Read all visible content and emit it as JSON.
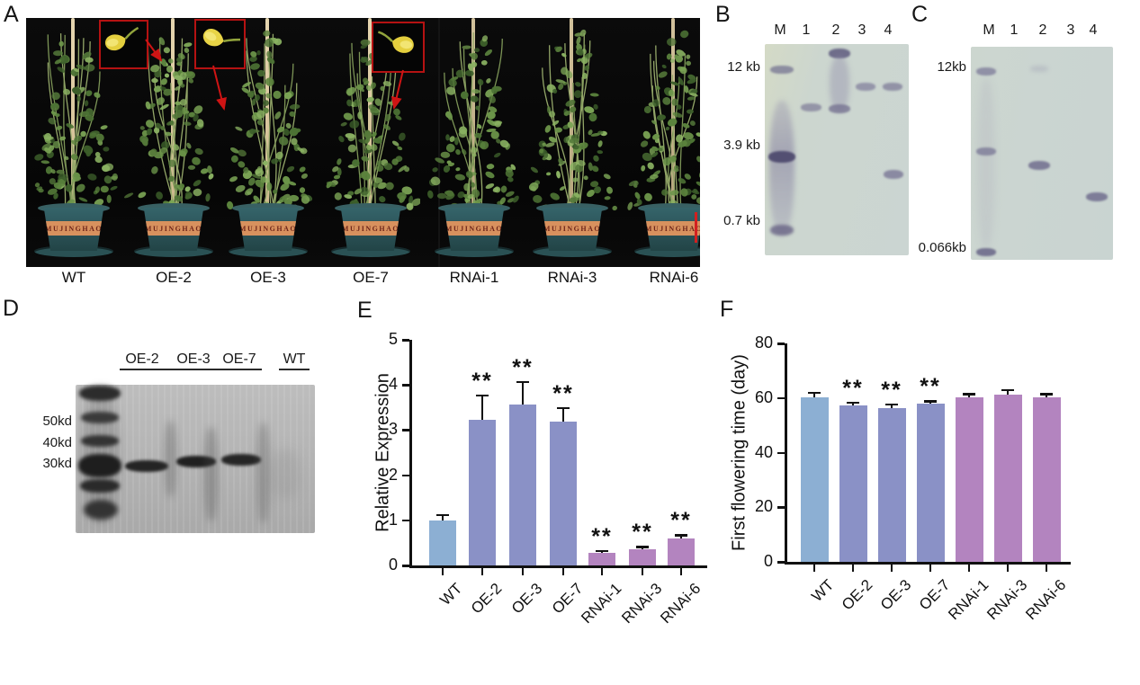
{
  "figure": {
    "panels": {
      "a": {
        "label": "A",
        "pot_text": "MUJINGHAO",
        "captions": [
          "WT",
          "OE-2",
          "OE-3",
          "OE-7",
          "RNAi-1",
          "RNAi-3",
          "RNAi-6"
        ]
      },
      "b": {
        "label": "B",
        "lanes": [
          "M",
          "1",
          "2",
          "3",
          "4"
        ],
        "markers": [
          "12 kb",
          "3.9 kb",
          "0.7 kb"
        ]
      },
      "c": {
        "label": "C",
        "lanes": [
          "M",
          "1",
          "2",
          "3",
          "4"
        ],
        "markers": [
          "12kb",
          "0.066kb"
        ]
      },
      "d": {
        "label": "D",
        "lane_headers": [
          "OE-2",
          "OE-3",
          "OE-7",
          "WT"
        ],
        "markers": [
          "50kd",
          "40kd",
          "30kd"
        ]
      },
      "e": {
        "label": "E"
      },
      "f": {
        "label": "F"
      }
    }
  },
  "chart_data": [
    {
      "id": "e",
      "type": "bar",
      "title": "",
      "xlabel": "",
      "ylabel": "Relative Expression",
      "categories": [
        "WT",
        "OE-2",
        "OE-3",
        "OE-7",
        "RNAi-1",
        "RNAi-3",
        "RNAi-6"
      ],
      "values": [
        1.0,
        3.22,
        3.57,
        3.18,
        0.28,
        0.36,
        0.6
      ],
      "errors": [
        0.12,
        0.55,
        0.5,
        0.3,
        0.04,
        0.05,
        0.07
      ],
      "significance": [
        "",
        "**",
        "**",
        "**",
        "**",
        "**",
        "**"
      ],
      "ylim": [
        0,
        5
      ],
      "yticks": [
        0,
        1,
        2,
        3,
        4,
        5
      ],
      "grid": false,
      "legend": false,
      "bar_colors": [
        "#8CAFD3",
        "#8A91C6",
        "#8A91C6",
        "#8A91C6",
        "#B384BF",
        "#B384BF",
        "#B384BF"
      ]
    },
    {
      "id": "f",
      "type": "bar",
      "title": "",
      "xlabel": "",
      "ylabel": "First flowering time (day)",
      "categories": [
        "WT",
        "OE-2",
        "OE-3",
        "OE-7",
        "RNAi-1",
        "RNAi-3",
        "RNAi-6"
      ],
      "values": [
        60.3,
        57.2,
        56.4,
        57.8,
        60.2,
        61.2,
        60.2
      ],
      "errors": [
        1.6,
        1.0,
        1.3,
        1.0,
        1.2,
        1.8,
        1.2
      ],
      "significance": [
        "",
        "**",
        "**",
        "**",
        "",
        "",
        ""
      ],
      "ylim": [
        0,
        80
      ],
      "yticks": [
        0,
        20,
        40,
        60,
        80
      ],
      "grid": false,
      "legend": false,
      "bar_colors": [
        "#8CAFD3",
        "#8A91C6",
        "#8A91C6",
        "#8A91C6",
        "#B384BF",
        "#B384BF",
        "#B384BF"
      ]
    }
  ]
}
